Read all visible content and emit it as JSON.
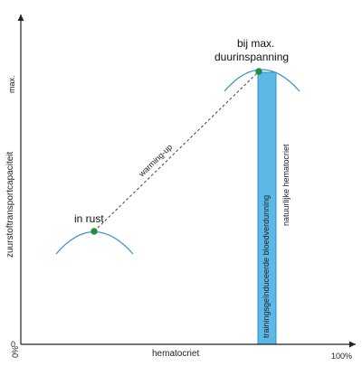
{
  "diagram": {
    "y_axis_title": "zuurstoftransportcapaciteit",
    "y_axis_max_label": "max.",
    "y_axis_zero_label": "0",
    "x_axis_title": "hematocriet",
    "x_axis_start_label": "0%",
    "x_axis_end_label": "100%",
    "rest_label": "in rust",
    "max_label_line1": "bij max.",
    "max_label_line2": "duurinspanning",
    "warming_up_label": "warming-up",
    "blood_thinning_label": "trainingsgeïnduceerde bloedverdunning",
    "natural_hematocrit_label": "natuurlijke hematocriet"
  },
  "colors": {
    "axis": "#222222",
    "curve": "#3d94cc",
    "band_fill": "#5cb8e6",
    "band_edge": "#2f8ec7",
    "point": "#1f8f3a",
    "dashed": "#444444"
  }
}
